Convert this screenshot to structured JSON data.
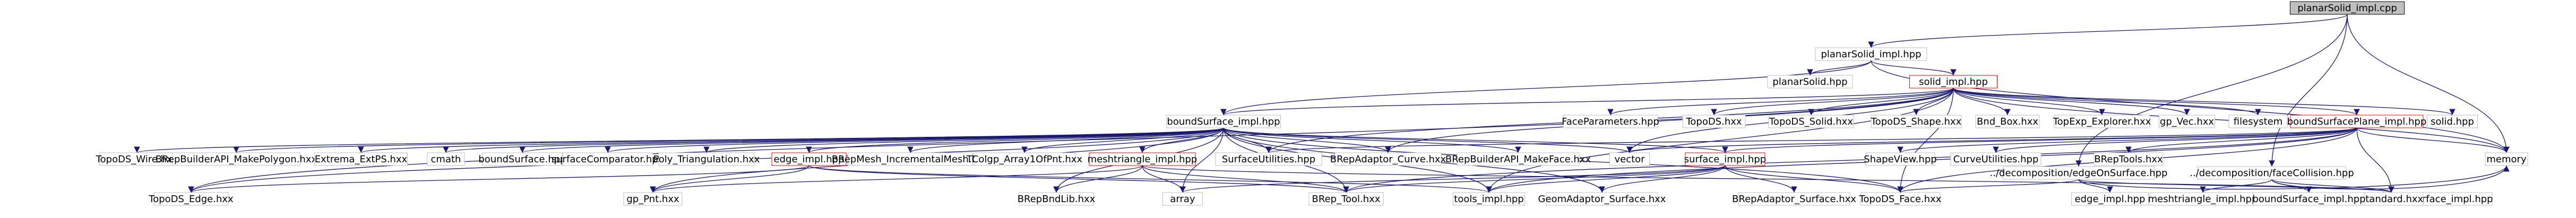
{
  "diagram": {
    "type": "include-dependency-graph",
    "colors": {
      "edge": "#191970",
      "node_border": "#bfbfbf",
      "linked_node_border": "#ff0000",
      "root_fill": "#bfbfbf",
      "background": "#ffffff"
    },
    "nodes": [
      {
        "id": "n0",
        "label": "planarSolid_impl.cpp",
        "style": "root"
      },
      {
        "id": "n1",
        "label": "planarSolid_impl.hpp",
        "style": "normal"
      },
      {
        "id": "n2",
        "label": "../decomposition/edgeOnSurface.hpp",
        "style": "normal"
      },
      {
        "id": "n3",
        "label": "../decomposition/faceCollision.hpp",
        "style": "normal"
      },
      {
        "id": "n4",
        "label": "planarSolid.hpp",
        "style": "normal"
      },
      {
        "id": "n5",
        "label": "solid_impl.hpp",
        "style": "red"
      },
      {
        "id": "n6",
        "label": "boundSurface_impl.hpp",
        "style": "normal"
      },
      {
        "id": "n7",
        "label": "FaceParameters.hpp",
        "style": "normal"
      },
      {
        "id": "n8",
        "label": "TopoDS.hxx",
        "style": "normal"
      },
      {
        "id": "n9",
        "label": "TopoDS_Solid.hxx",
        "style": "normal"
      },
      {
        "id": "n10",
        "label": "TopoDS_Shape.hxx",
        "style": "normal"
      },
      {
        "id": "n11",
        "label": "Bnd_Box.hxx",
        "style": "normal"
      },
      {
        "id": "n12",
        "label": "TopExp_Explorer.hxx",
        "style": "normal"
      },
      {
        "id": "n13",
        "label": "gp_Vec.hxx",
        "style": "normal"
      },
      {
        "id": "n14",
        "label": "filesystem",
        "style": "normal"
      },
      {
        "id": "n15",
        "label": "boundSurfacePlane_impl.hpp",
        "style": "red"
      },
      {
        "id": "n16",
        "label": "solid.hpp",
        "style": "normal"
      },
      {
        "id": "n17",
        "label": "memory",
        "style": "normal"
      },
      {
        "id": "n18",
        "label": "edge_impl.hpp",
        "style": "normal"
      },
      {
        "id": "n19",
        "label": "meshtriangle_impl.hpp",
        "style": "normal"
      },
      {
        "id": "n20",
        "label": "boundSurface_impl.hpp",
        "style": "normal"
      },
      {
        "id": "n21",
        "label": "TopoDS_Wire.hxx",
        "style": "normal"
      },
      {
        "id": "n22",
        "label": "BRepBuilderAPI_MakePolygon.hxx",
        "style": "normal"
      },
      {
        "id": "n23",
        "label": "Extrema_ExtPS.hxx",
        "style": "normal"
      },
      {
        "id": "n24",
        "label": "cmath",
        "style": "normal"
      },
      {
        "id": "n25",
        "label": "boundSurface.hpp",
        "style": "normal"
      },
      {
        "id": "n26",
        "label": "surfaceComparator.hpp",
        "style": "normal"
      },
      {
        "id": "n27",
        "label": "Poly_Triangulation.hxx",
        "style": "normal"
      },
      {
        "id": "n28",
        "label": "edge_impl.hpp",
        "style": "red"
      },
      {
        "id": "n29",
        "label": "BRepMesh_IncrementalMesh.hxx",
        "style": "normal"
      },
      {
        "id": "n30",
        "label": "TColgp_Array1OfPnt.hxx",
        "style": "normal"
      },
      {
        "id": "n31",
        "label": "meshtriangle_impl.hpp",
        "style": "red"
      },
      {
        "id": "n32",
        "label": "SurfaceUtilities.hpp",
        "style": "normal"
      },
      {
        "id": "n33",
        "label": "BRepAdaptor_Curve.hxx",
        "style": "normal"
      },
      {
        "id": "n34",
        "label": "BRepBuilderAPI_MakeFace.hxx",
        "style": "normal"
      },
      {
        "id": "n35",
        "label": "vector",
        "style": "normal"
      },
      {
        "id": "n36",
        "label": "surface_impl.hpp",
        "style": "red"
      },
      {
        "id": "n37",
        "label": "ShapeView.hpp",
        "style": "normal"
      },
      {
        "id": "n38",
        "label": "CurveUtilities.hpp",
        "style": "normal"
      },
      {
        "id": "n39",
        "label": "BRepTools.hxx",
        "style": "normal"
      },
      {
        "id": "n40",
        "label": "TopoDS_Edge.hxx",
        "style": "normal"
      },
      {
        "id": "n41",
        "label": "gp_Pnt.hxx",
        "style": "normal"
      },
      {
        "id": "n42",
        "label": "BRepBndLib.hxx",
        "style": "normal"
      },
      {
        "id": "n43",
        "label": "array",
        "style": "normal"
      },
      {
        "id": "n44",
        "label": "BRep_Tool.hxx",
        "style": "normal"
      },
      {
        "id": "n45",
        "label": "tools_impl.hpp",
        "style": "normal"
      },
      {
        "id": "n46",
        "label": "GeomAdaptor_Surface.hxx",
        "style": "normal"
      },
      {
        "id": "n47",
        "label": "BRepAdaptor_Surface.hxx",
        "style": "normal"
      },
      {
        "id": "n48",
        "label": "TopoDS_Face.hxx",
        "style": "normal"
      },
      {
        "id": "n49",
        "label": "Standard.hxx",
        "style": "normal"
      },
      {
        "id": "n50",
        "label": "meshtriangle_impl.hpp",
        "style": "normal"
      },
      {
        "id": "n51",
        "label": "boundSurface_impl.hpp",
        "style": "normal"
      }
    ],
    "edges": [
      [
        "n0",
        "n1"
      ],
      [
        "n0",
        "n2"
      ],
      [
        "n0",
        "n3"
      ],
      [
        "n0",
        "n17"
      ],
      [
        "n1",
        "n4"
      ],
      [
        "n1",
        "n5"
      ],
      [
        "n1",
        "n6"
      ],
      [
        "n1",
        "n17"
      ],
      [
        "n5",
        "n6"
      ],
      [
        "n5",
        "n7"
      ],
      [
        "n5",
        "n8"
      ],
      [
        "n5",
        "n9"
      ],
      [
        "n5",
        "n10"
      ],
      [
        "n5",
        "n11"
      ],
      [
        "n5",
        "n12"
      ],
      [
        "n5",
        "n13"
      ],
      [
        "n5",
        "n14"
      ],
      [
        "n5",
        "n15"
      ],
      [
        "n5",
        "n16"
      ],
      [
        "n5",
        "n17"
      ],
      [
        "n5",
        "n32"
      ],
      [
        "n5",
        "n33"
      ],
      [
        "n5",
        "n35"
      ],
      [
        "n5",
        "n40"
      ],
      [
        "n5",
        "n45"
      ],
      [
        "n5",
        "n48"
      ],
      [
        "n6",
        "n21"
      ],
      [
        "n6",
        "n22"
      ],
      [
        "n6",
        "n23"
      ],
      [
        "n6",
        "n24"
      ],
      [
        "n6",
        "n25"
      ],
      [
        "n6",
        "n26"
      ],
      [
        "n6",
        "n27"
      ],
      [
        "n6",
        "n28"
      ],
      [
        "n6",
        "n29"
      ],
      [
        "n6",
        "n30"
      ],
      [
        "n6",
        "n31"
      ],
      [
        "n6",
        "n32"
      ],
      [
        "n6",
        "n33"
      ],
      [
        "n6",
        "n34"
      ],
      [
        "n6",
        "n35"
      ],
      [
        "n6",
        "n36"
      ],
      [
        "n6",
        "n40"
      ],
      [
        "n6",
        "n41"
      ],
      [
        "n6",
        "n42"
      ],
      [
        "n6",
        "n43"
      ],
      [
        "n6",
        "n44"
      ],
      [
        "n6",
        "n45"
      ],
      [
        "n6",
        "n46"
      ],
      [
        "n6",
        "n48"
      ],
      [
        "n15",
        "n35"
      ],
      [
        "n15",
        "n36"
      ],
      [
        "n15",
        "n37"
      ],
      [
        "n15",
        "n38"
      ],
      [
        "n15",
        "n39"
      ],
      [
        "n15",
        "n17"
      ],
      [
        "n15",
        "n44"
      ],
      [
        "n15",
        "n45"
      ],
      [
        "n15",
        "n48"
      ],
      [
        "n15",
        "n32"
      ],
      [
        "n15",
        "n49"
      ],
      [
        "n28",
        "n41"
      ],
      [
        "n28",
        "n44"
      ],
      [
        "n28",
        "n40"
      ],
      [
        "n28",
        "n45"
      ],
      [
        "n31",
        "n41"
      ],
      [
        "n31",
        "n43"
      ],
      [
        "n31",
        "n42"
      ],
      [
        "n31",
        "n44"
      ],
      [
        "n31",
        "n49"
      ],
      [
        "n36",
        "n44"
      ],
      [
        "n36",
        "n45"
      ],
      [
        "n36",
        "n46"
      ],
      [
        "n36",
        "n47"
      ],
      [
        "n36",
        "n48"
      ],
      [
        "n36",
        "n43"
      ],
      [
        "n2",
        "n17"
      ],
      [
        "n2",
        "n18"
      ],
      [
        "n2",
        "n48"
      ],
      [
        "n2",
        "n49"
      ],
      [
        "n3",
        "n17"
      ],
      [
        "n3",
        "n50"
      ],
      [
        "n3",
        "n51"
      ],
      [
        "n3",
        "n49"
      ]
    ]
  }
}
